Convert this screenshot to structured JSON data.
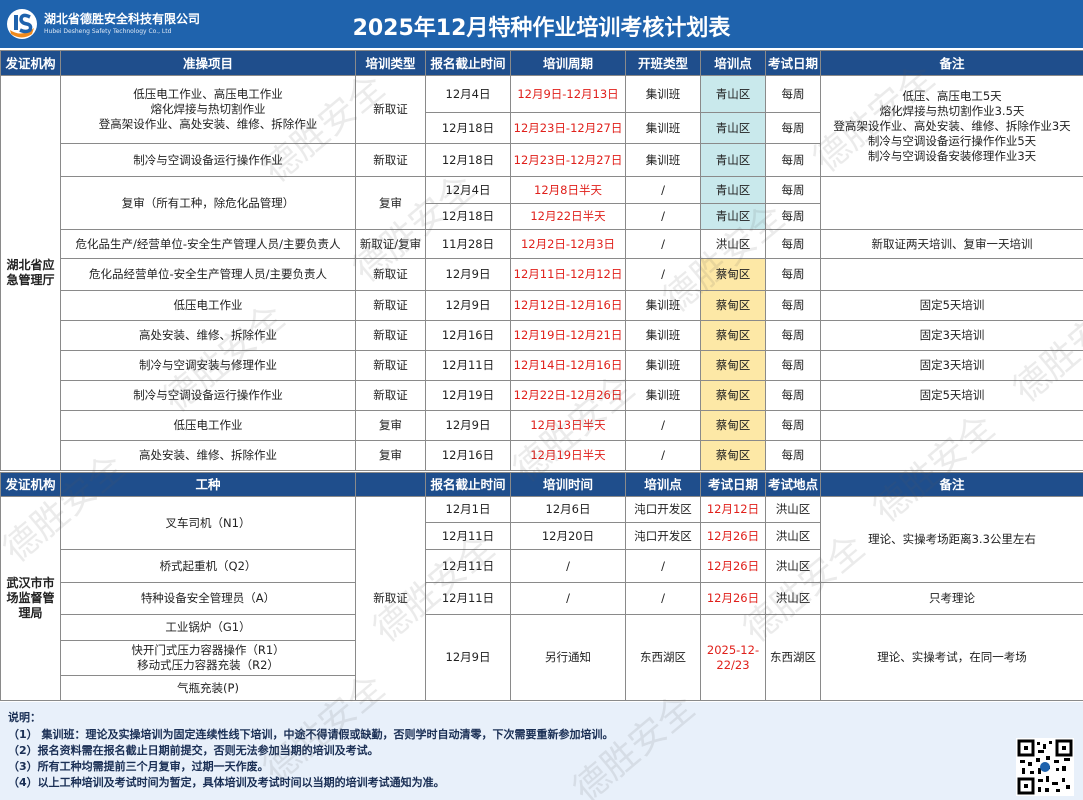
{
  "header": {
    "company": "湖北省德胜安全科技有限公司",
    "company_en": "Hubei Desheng Safety Technology Co., Ltd",
    "title": "2025年12月特种作业培训考核计划表"
  },
  "watermark": "德胜安全",
  "table1": {
    "columns": [
      "发证机构",
      "准操项目",
      "培训类型",
      "报名截止时间",
      "培训周期",
      "开班类型",
      "培训点",
      "考试日期",
      "备注"
    ],
    "rows": [
      [
        "湖北省应急管理厅",
        "低压电工作业、高压电工作业\n熔化焊接与热切割作业\n登高架设作业、高处安装、维修、拆除作业",
        "新取证",
        "12月4日",
        "12月9日-12月13日",
        "集训班",
        "青山区",
        "每周",
        "低压、高压电工5天\n熔化焊接与热切割作业3.5天\n登高架设作业、高处安装、维修、拆除作业3天\n制冷与空调设备运行操作作业5天\n制冷与空调设备安装修理作业3天"
      ],
      [
        "12月18日",
        "12月23日-12月27日",
        "集训班",
        "青山区",
        "每周"
      ],
      [
        "制冷与空调设备运行操作作业",
        "新取证",
        "12月18日",
        "12月23日-12月27日",
        "集训班",
        "青山区",
        "每周"
      ],
      [
        "复审（所有工种，除危化品管理）",
        "复审",
        "12月4日",
        "12月8日半天",
        "/",
        "青山区",
        "每周"
      ],
      [
        "12月18日",
        "12月22日半天",
        "/",
        "青山区",
        "每周"
      ],
      [
        "危化品生产/经营单位-安全生产管理人员/主要负责人",
        "新取证/复审",
        "11月28日",
        "12月2日-12月3日",
        "/",
        "洪山区",
        "每周",
        "新取证两天培训、复审一天培训"
      ],
      [
        "危化品经营单位-安全生产管理人员/主要负责人",
        "新取证",
        "12月9日",
        "12月11日-12月12日",
        "/",
        "蔡甸区",
        "每周"
      ],
      [
        "低压电工作业",
        "新取证",
        "12月9日",
        "12月12日-12月16日",
        "集训班",
        "蔡甸区",
        "每周",
        "固定5天培训"
      ],
      [
        "高处安装、维修、拆除作业",
        "新取证",
        "12月16日",
        "12月19日-12月21日",
        "集训班",
        "蔡甸区",
        "每周",
        "固定3天培训"
      ],
      [
        "制冷与空调安装与修理作业",
        "新取证",
        "12月11日",
        "12月14日-12月16日",
        "集训班",
        "蔡甸区",
        "每周",
        "固定3天培训"
      ],
      [
        "制冷与空调设备运行操作作业",
        "新取证",
        "12月19日",
        "12月22日-12月26日",
        "集训班",
        "蔡甸区",
        "每周",
        "固定5天培训"
      ],
      [
        "低压电工作业",
        "复审",
        "12月9日",
        "12月13日半天",
        "/",
        "蔡甸区",
        "每周"
      ],
      [
        "高处安装、维修、拆除作业",
        "复审",
        "12月16日",
        "12月19日半天",
        "/",
        "蔡甸区",
        "每周"
      ]
    ]
  },
  "table2": {
    "columns": [
      "发证机构",
      "工种",
      "报名截止时间",
      "培训时间",
      "培训点",
      "考试日期",
      "考试地点",
      "备注"
    ],
    "rows": [
      [
        "武汉市市场监督管理局",
        "叉车司机（N1）",
        "新取证",
        "12月1日",
        "12月6日",
        "沌口开发区",
        "12月12日",
        "洪山区",
        "理论、实操考场距离3.3公里左右"
      ],
      [
        "12月11日",
        "12月20日",
        "沌口开发区",
        "12月26日",
        "洪山区"
      ],
      [
        "桥式起重机（Q2）",
        "12月11日",
        "/",
        "/",
        "12月26日",
        "洪山区"
      ],
      [
        "特种设备安全管理员（A）",
        "12月11日",
        "/",
        "/",
        "12月26日",
        "洪山区",
        "只考理论"
      ],
      [
        "工业锅炉（G1）",
        "12月9日",
        "另行通知",
        "东西湖区",
        "2025-12-22/23",
        "东西湖区",
        "理论、实操考试，在同一考场"
      ],
      [
        "快开门式压力容器操作（R1）\n移动式压力容器充装（R2）"
      ],
      [
        "气瓶充装(P)"
      ]
    ]
  },
  "notes": {
    "title": "说明：",
    "items": [
      "（1）  集训班：理论及实操培训为固定连续性线下培训，中途不得请假或缺勤，否则学时自动清零，下次需要重新参加培训。",
      "（2）报名资料需在报名截止日期前提交，否则无法参加当期的培训及考试。",
      "（3）所有工种均需提前三个月复审，过期一天作废。",
      "（4）以上工种培训及考试时间为暂定，具体培训及考试时间以当期的培训考试通知为准。"
    ]
  }
}
